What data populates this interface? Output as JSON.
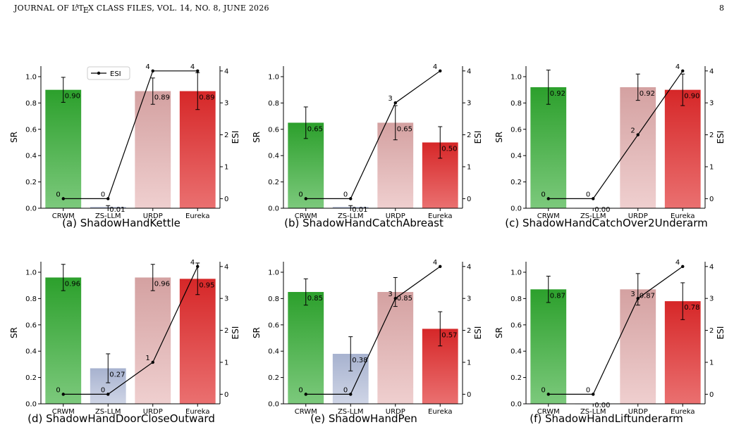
{
  "header": {
    "journal": "JOURNAL OF L",
    "latex_a": "A",
    "latex_t": "T",
    "latex_e": "E",
    "latex_x": "X",
    "rest": " CLASS FILES, VOL. 14, NO. 8, JUNE 2026",
    "page": "8"
  },
  "colors": {
    "crwm_top": "#2ca02c",
    "crwm_bottom": "#7cc97c",
    "zs_top": "#a7b2cf",
    "zs_bottom": "#cfd5e6",
    "urdp_top": "#d4a1a1",
    "urdp_bottom": "#efcfcf",
    "eureka_top": "#d62728",
    "eureka_bottom": "#ea7070"
  },
  "chart_data": [
    {
      "type": "bar",
      "caption": "(a) ShadowHandKettle",
      "categories": [
        "CRWM",
        "ZS-LLM",
        "URDP",
        "Eureka"
      ],
      "sr": [
        0.9,
        0.01,
        0.89,
        0.89
      ],
      "sr_labels": [
        "0.90",
        "0.01",
        "0.89",
        "0.89"
      ],
      "sr_err": [
        0.095,
        0.01,
        0.1,
        0.14
      ],
      "esi": [
        0,
        0,
        4,
        4
      ],
      "ylabel": "SR",
      "y2label": "ESI",
      "ylim": [
        0,
        1.08
      ],
      "y2lim": [
        -0.3,
        4.15
      ],
      "yticks": [
        "0.0",
        "0.2",
        "0.4",
        "0.6",
        "0.8",
        "1.0"
      ],
      "y2ticks": [
        "0",
        "1",
        "2",
        "3",
        "4"
      ],
      "legend": "ESI",
      "legend_position": "top-left"
    },
    {
      "type": "bar",
      "caption": "(b) ShadowHandCatchAbreast",
      "categories": [
        "CRWM",
        "ZS-LLM",
        "URDP",
        "Eureka"
      ],
      "sr": [
        0.65,
        0.01,
        0.65,
        0.5
      ],
      "sr_labels": [
        "0.65",
        "0.01",
        "0.65",
        "0.50"
      ],
      "sr_err": [
        0.12,
        0.01,
        0.13,
        0.12
      ],
      "esi": [
        0,
        0,
        3,
        4
      ],
      "ylabel": "SR",
      "y2label": "ESI",
      "ylim": [
        0,
        1.08
      ],
      "y2lim": [
        -0.3,
        4.15
      ],
      "yticks": [
        "0.0",
        "0.2",
        "0.4",
        "0.6",
        "0.8",
        "1.0"
      ],
      "y2ticks": [
        "0",
        "1",
        "2",
        "3",
        "4"
      ]
    },
    {
      "type": "bar",
      "caption": "(c) ShadowHandCatchOver2Underarm",
      "categories": [
        "CRWM",
        "ZS-LLM",
        "URDP",
        "Eureka"
      ],
      "sr": [
        0.92,
        0.0,
        0.92,
        0.9
      ],
      "sr_labels": [
        "0.92",
        "0.00",
        "0.92",
        "0.90"
      ],
      "sr_err": [
        0.13,
        0,
        0.1,
        0.12
      ],
      "esi": [
        0,
        0,
        2,
        4
      ],
      "ylabel": "SR",
      "y2label": "ESI",
      "ylim": [
        0,
        1.08
      ],
      "y2lim": [
        -0.3,
        4.15
      ],
      "yticks": [
        "0.0",
        "0.2",
        "0.4",
        "0.6",
        "0.8",
        "1.0"
      ],
      "y2ticks": [
        "0",
        "1",
        "2",
        "3",
        "4"
      ]
    },
    {
      "type": "bar",
      "caption": "(d) ShadowHandDoorCloseOutward",
      "categories": [
        "CRWM",
        "ZS-LLM",
        "URDP",
        "Eureka"
      ],
      "sr": [
        0.96,
        0.27,
        0.96,
        0.95
      ],
      "sr_labels": [
        "0.96",
        "0.27",
        "0.96",
        "0.95"
      ],
      "sr_err": [
        0.1,
        0.11,
        0.1,
        0.12
      ],
      "esi": [
        0,
        0,
        1,
        4
      ],
      "ylabel": "SR",
      "y2label": "ESI",
      "ylim": [
        0,
        1.08
      ],
      "y2lim": [
        -0.3,
        4.15
      ],
      "yticks": [
        "0.0",
        "0.2",
        "0.4",
        "0.6",
        "0.8",
        "1.0"
      ],
      "y2ticks": [
        "0",
        "1",
        "2",
        "3",
        "4"
      ]
    },
    {
      "type": "bar",
      "caption": "(e) ShadowHandPen",
      "categories": [
        "CRWM",
        "ZS-LLM",
        "URDP",
        "Eureka"
      ],
      "sr": [
        0.85,
        0.38,
        0.85,
        0.57
      ],
      "sr_labels": [
        "0.85",
        "0.38",
        "0.85",
        "0.57"
      ],
      "sr_err": [
        0.1,
        0.13,
        0.11,
        0.13
      ],
      "esi": [
        0,
        0,
        3,
        4
      ],
      "ylabel": "SR",
      "y2label": "ESI",
      "ylim": [
        0,
        1.08
      ],
      "y2lim": [
        -0.3,
        4.15
      ],
      "yticks": [
        "0.0",
        "0.2",
        "0.4",
        "0.6",
        "0.8",
        "1.0"
      ],
      "y2ticks": [
        "0",
        "1",
        "2",
        "3",
        "4"
      ]
    },
    {
      "type": "bar",
      "caption": "(f) ShadowHandLiftunderarm",
      "categories": [
        "CRWM",
        "ZS-LLM",
        "URDP",
        "Eureka"
      ],
      "sr": [
        0.87,
        0.0,
        0.87,
        0.78
      ],
      "sr_labels": [
        "0.87",
        "0.00",
        "0.87",
        "0.78"
      ],
      "sr_err": [
        0.1,
        0,
        0.12,
        0.14
      ],
      "esi": [
        0,
        0,
        3,
        4
      ],
      "ylabel": "SR",
      "y2label": "ESI",
      "ylim": [
        0,
        1.08
      ],
      "y2lim": [
        -0.3,
        4.15
      ],
      "yticks": [
        "0.0",
        "0.2",
        "0.4",
        "0.6",
        "0.8",
        "1.0"
      ],
      "y2ticks": [
        "0",
        "1",
        "2",
        "3",
        "4"
      ]
    }
  ]
}
